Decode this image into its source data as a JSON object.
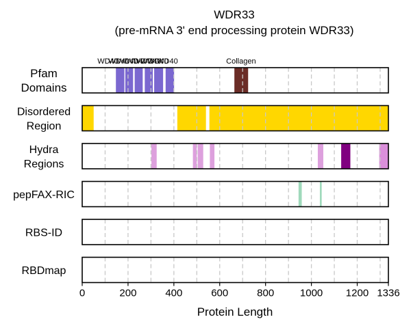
{
  "title": "WDR33",
  "subtitle": "(pre-mRNA 3' end processing protein WDR33)",
  "chart_data": {
    "type": "bar",
    "protein_length": 1336,
    "xlabel": "Protein Length",
    "xlim": [
      0,
      1336
    ],
    "x_ticks": [
      0,
      200,
      400,
      600,
      800,
      1000,
      1200,
      1336
    ],
    "x_tick_labels": [
      "0",
      "200",
      "400",
      "600",
      "800",
      "1000",
      "1200",
      "1336"
    ],
    "grid": "vertical dashed",
    "grid_positions": [
      100,
      200,
      300,
      400,
      500,
      600,
      700,
      800,
      900,
      1000,
      1100,
      1200,
      1300
    ],
    "tracks": [
      {
        "id": "pfam",
        "label_lines": [
          "Pfam",
          "Domains"
        ],
        "large": true,
        "segments": [
          {
            "start": 147,
            "end": 184,
            "color": "#7b68d0",
            "name": "WD40"
          },
          {
            "start": 188,
            "end": 222,
            "color": "#7b68d0",
            "name": "WD40"
          },
          {
            "start": 229,
            "end": 264,
            "color": "#7b68d0",
            "name": "WD40"
          },
          {
            "start": 273,
            "end": 308,
            "color": "#7b68d0",
            "name": "WD40"
          },
          {
            "start": 314,
            "end": 353,
            "color": "#7b68d0",
            "name": "WD40"
          },
          {
            "start": 364,
            "end": 401,
            "color": "#7b68d0",
            "name": "WD40"
          },
          {
            "start": 664,
            "end": 724,
            "color": "#6b2d27",
            "name": "Collagen"
          }
        ],
        "label_texts": [
          {
            "x": 112,
            "text": "WD40"
          },
          {
            "x": 160,
            "text": "WD40"
          },
          {
            "x": 198,
            "text": "WD40"
          },
          {
            "x": 238,
            "text": "WD40"
          },
          {
            "x": 268,
            "text": "WD40"
          },
          {
            "x": 300,
            "text": "WD40"
          },
          {
            "x": 330,
            "text": "WD40"
          },
          {
            "x": 372,
            "text": "WD40"
          },
          {
            "x": 693,
            "text": "Collagen"
          }
        ]
      },
      {
        "id": "disordered",
        "label_lines": [
          "Disordered",
          "Region"
        ],
        "segments": [
          {
            "start": 0,
            "end": 50,
            "color": "#ffd700"
          },
          {
            "start": 415,
            "end": 540,
            "color": "#ffd700"
          },
          {
            "start": 555,
            "end": 1336,
            "color": "#ffd700"
          }
        ]
      },
      {
        "id": "hydra",
        "label_lines": [
          "Hydra",
          "Regions"
        ],
        "segments": [
          {
            "start": 302,
            "end": 325,
            "color": "#dda0dd"
          },
          {
            "start": 483,
            "end": 500,
            "color": "#dda0dd"
          },
          {
            "start": 504,
            "end": 528,
            "color": "#dda0dd"
          },
          {
            "start": 557,
            "end": 577,
            "color": "#dda0dd"
          },
          {
            "start": 1028,
            "end": 1052,
            "color": "#dda0dd"
          },
          {
            "start": 1130,
            "end": 1170,
            "color": "#800080"
          },
          {
            "start": 1296,
            "end": 1336,
            "color": "#da8fda"
          }
        ]
      },
      {
        "id": "pepfax",
        "label_lines": [
          "pepFAX-RIC"
        ],
        "segments": [
          {
            "start": 944,
            "end": 958,
            "color": "#9fd9bb"
          },
          {
            "start": 1037,
            "end": 1045,
            "color": "#9fd9bb"
          }
        ]
      },
      {
        "id": "rbsid",
        "label_lines": [
          "RBS-ID"
        ],
        "segments": []
      },
      {
        "id": "rbdmap",
        "label_lines": [
          "RBDmap"
        ],
        "segments": []
      }
    ]
  }
}
